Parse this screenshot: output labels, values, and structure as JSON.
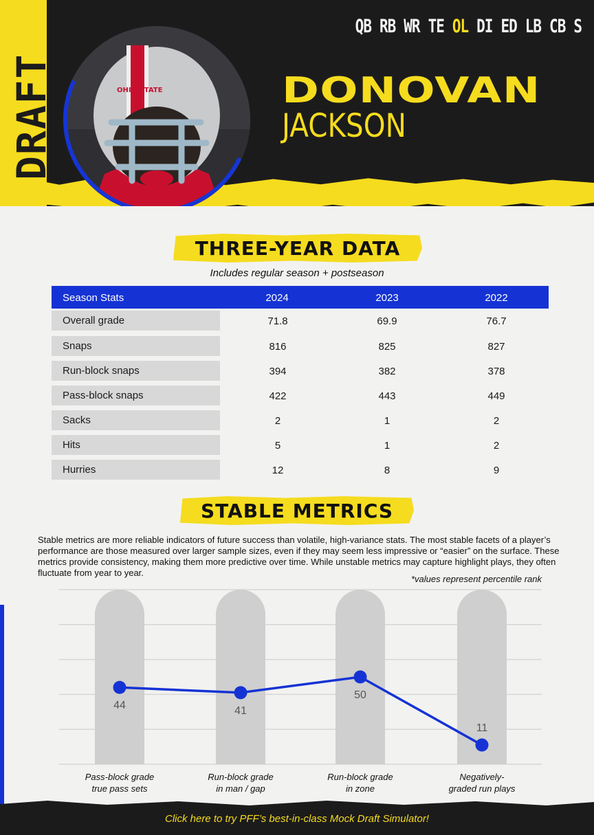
{
  "header": {
    "side_word": "DRAFT",
    "positions": [
      "QB",
      "RB",
      "WR",
      "TE",
      "OL",
      "DI",
      "ED",
      "LB",
      "CB",
      "S"
    ],
    "active_position": "OL",
    "first_name": "DONOVAN",
    "last_name": "JACKSON",
    "helmet_text": "OHIO STATE"
  },
  "three_year": {
    "title": "THREE-YEAR DATA",
    "subtitle": "Includes regular season + postseason",
    "header": [
      "Season Stats",
      "2024",
      "2023",
      "2022"
    ],
    "rows": [
      {
        "label": "Overall grade",
        "values": [
          "71.8",
          "69.9",
          "76.7"
        ]
      },
      {
        "label": "Snaps",
        "values": [
          "816",
          "825",
          "827"
        ]
      },
      {
        "label": "Run-block snaps",
        "values": [
          "394",
          "382",
          "378"
        ]
      },
      {
        "label": "Pass-block snaps",
        "values": [
          "422",
          "443",
          "449"
        ]
      },
      {
        "label": "Sacks",
        "values": [
          "2",
          "1",
          "2"
        ]
      },
      {
        "label": "Hits",
        "values": [
          "5",
          "1",
          "2"
        ]
      },
      {
        "label": "Hurries",
        "values": [
          "12",
          "8",
          "9"
        ]
      }
    ]
  },
  "stable": {
    "title": "STABLE METRICS",
    "description": "Stable metrics are more reliable indicators of future success than volatile, high-variance stats. The most stable facets of a player’s performance are those measured over larger sample sizes, even if they may seem less impressive or “easier” on the surface. These metrics provide consistency, making them more predictive over time. While unstable metrics may capture highlight plays, they often fluctuate from year to year.",
    "note": "*values represent percentile rank"
  },
  "chart_data": {
    "type": "line",
    "categories": [
      [
        "Pass-block grade",
        "true pass sets"
      ],
      [
        "Run-block grade",
        "in man / gap"
      ],
      [
        "Run-block grade",
        "in zone"
      ],
      [
        "Negatively-",
        "graded run plays"
      ]
    ],
    "values": [
      44,
      41,
      50,
      11
    ],
    "ylim": [
      0,
      100
    ],
    "grid": true,
    "colors": {
      "line": "#1533d4",
      "bar": "#cfcfcf",
      "grid": "#d6d6d6"
    }
  },
  "footer": {
    "link_text": "Click here to try PFF’s best-in-class Mock Draft Simulator!"
  }
}
